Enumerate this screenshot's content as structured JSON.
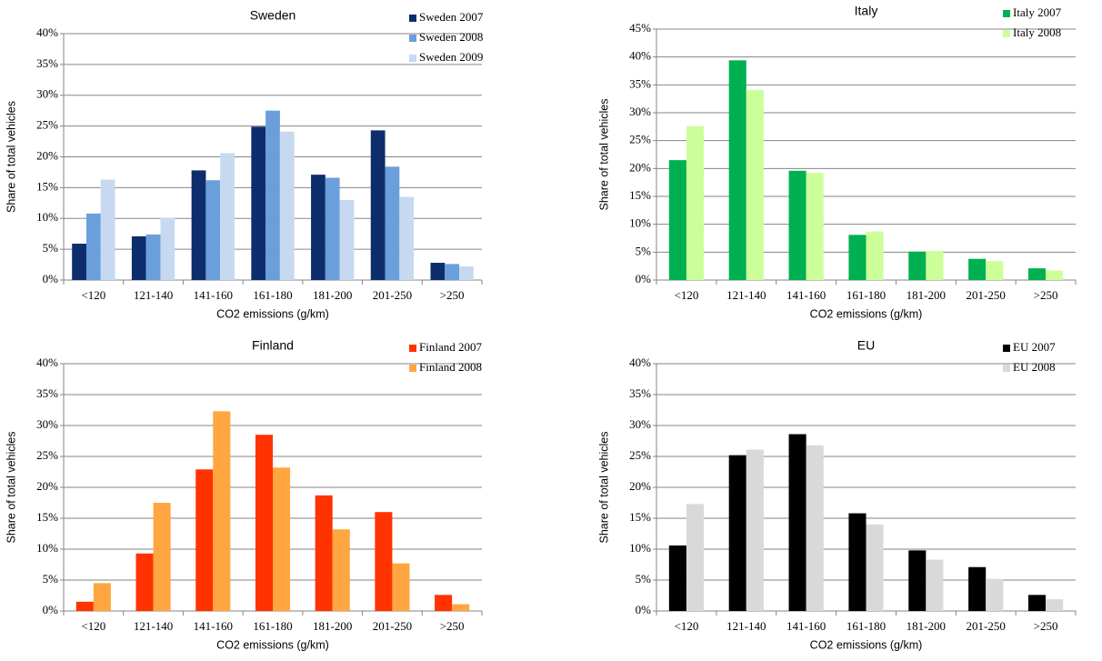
{
  "chart_data": [
    {
      "type": "bar",
      "title": "Sweden",
      "xlabel": "CO2 emissions (g/km)",
      "ylabel": "Share of total vehicles",
      "categories": [
        "<120",
        "121-140",
        "141-160",
        "161-180",
        "181-200",
        "201-250",
        ">250"
      ],
      "series": [
        {
          "name": "Sweden 2007",
          "color": "#0d2d6c",
          "values": [
            5.9,
            7.1,
            17.8,
            24.9,
            17.1,
            24.3,
            2.8
          ]
        },
        {
          "name": "Sweden 2008",
          "color": "#6a9fdc",
          "values": [
            10.8,
            7.4,
            16.2,
            27.5,
            16.6,
            18.4,
            2.6
          ]
        },
        {
          "name": "Sweden 2009",
          "color": "#c6d9f1",
          "values": [
            16.3,
            10.1,
            20.6,
            24.1,
            13.0,
            13.5,
            2.2
          ]
        }
      ],
      "ylim": [
        0,
        40
      ],
      "yticks": [
        {
          "value": 0,
          "label": "0%"
        },
        {
          "value": 5,
          "label": "5%"
        },
        {
          "value": 10,
          "label": "10%"
        },
        {
          "value": 15,
          "label": "15%"
        },
        {
          "value": 20,
          "label": "20%"
        },
        {
          "value": 25,
          "label": "25%"
        },
        {
          "value": 30,
          "label": "30%"
        },
        {
          "value": 35,
          "label": "35%"
        },
        {
          "value": 40,
          "label": "40%"
        }
      ],
      "grid": true,
      "legend": "top-right"
    },
    {
      "type": "bar",
      "title": "Italy",
      "xlabel": "CO2 emissions (g/km)",
      "ylabel": "Share of total vehicles",
      "categories": [
        "<120",
        "121-140",
        "141-160",
        "161-180",
        "181-200",
        "201-250",
        ">250"
      ],
      "series": [
        {
          "name": "Italy 2007",
          "color": "#00b050",
          "values": [
            21.5,
            39.4,
            19.6,
            8.1,
            5.1,
            3.8,
            2.1
          ]
        },
        {
          "name": "Italy 2008",
          "color": "#ccff99",
          "values": [
            27.6,
            34.1,
            19.2,
            8.7,
            5.2,
            3.4,
            1.7
          ]
        }
      ],
      "ylim": [
        0,
        45
      ],
      "yticks": [
        {
          "value": 0,
          "label": "0%"
        },
        {
          "value": 5,
          "label": "5%"
        },
        {
          "value": 10,
          "label": "10%"
        },
        {
          "value": 15,
          "label": "15%"
        },
        {
          "value": 20,
          "label": "20%"
        },
        {
          "value": 25,
          "label": "25%"
        },
        {
          "value": 30,
          "label": "30%"
        },
        {
          "value": 35,
          "label": "35%"
        },
        {
          "value": 40,
          "label": "40%"
        },
        {
          "value": 45,
          "label": "45%"
        }
      ],
      "grid": true,
      "legend": "top-right"
    },
    {
      "type": "bar",
      "title": "Finland",
      "xlabel": "CO2 emissions (g/km)",
      "ylabel": "Share of total vehicles",
      "categories": [
        "<120",
        "121-140",
        "141-160",
        "161-180",
        "181-200",
        "201-250",
        ">250"
      ],
      "series": [
        {
          "name": "Finland 2007",
          "color": "#ff3300",
          "values": [
            1.5,
            9.3,
            22.9,
            28.5,
            18.7,
            16.0,
            2.6
          ]
        },
        {
          "name": "Finland 2008",
          "color": "#ffa640",
          "values": [
            4.5,
            17.5,
            32.3,
            23.2,
            13.2,
            7.7,
            1.1
          ]
        }
      ],
      "ylim": [
        0,
        40
      ],
      "yticks": [
        {
          "value": 0,
          "label": "0%"
        },
        {
          "value": 5,
          "label": "5%"
        },
        {
          "value": 10,
          "label": "10%"
        },
        {
          "value": 15,
          "label": "15%"
        },
        {
          "value": 20,
          "label": "20%"
        },
        {
          "value": 25,
          "label": "25%"
        },
        {
          "value": 30,
          "label": "30%"
        },
        {
          "value": 35,
          "label": "35%"
        },
        {
          "value": 40,
          "label": "40%"
        }
      ],
      "grid": true,
      "legend": "top-right"
    },
    {
      "type": "bar",
      "title": "EU",
      "xlabel": "CO2 emissions (g/km)",
      "ylabel": "Share of total vehicles",
      "categories": [
        "<120",
        "121-140",
        "141-160",
        "161-180",
        "181-200",
        "201-250",
        ">250"
      ],
      "series": [
        {
          "name": "EU 2007",
          "color": "#000000",
          "values": [
            10.6,
            25.2,
            28.6,
            15.8,
            9.8,
            7.1,
            2.6
          ]
        },
        {
          "name": "EU 2008",
          "color": "#d9d9d9",
          "values": [
            17.3,
            26.1,
            26.8,
            14.0,
            8.3,
            5.2,
            1.9
          ]
        }
      ],
      "ylim": [
        0,
        40
      ],
      "yticks": [
        {
          "value": 0,
          "label": "0%"
        },
        {
          "value": 5,
          "label": "5%"
        },
        {
          "value": 10,
          "label": "10%"
        },
        {
          "value": 15,
          "label": "15%"
        },
        {
          "value": 20,
          "label": "20%"
        },
        {
          "value": 25,
          "label": "25%"
        },
        {
          "value": 30,
          "label": "30%"
        },
        {
          "value": 35,
          "label": "35%"
        },
        {
          "value": 40,
          "label": "40%"
        }
      ],
      "grid": true,
      "legend": "top-right"
    }
  ]
}
